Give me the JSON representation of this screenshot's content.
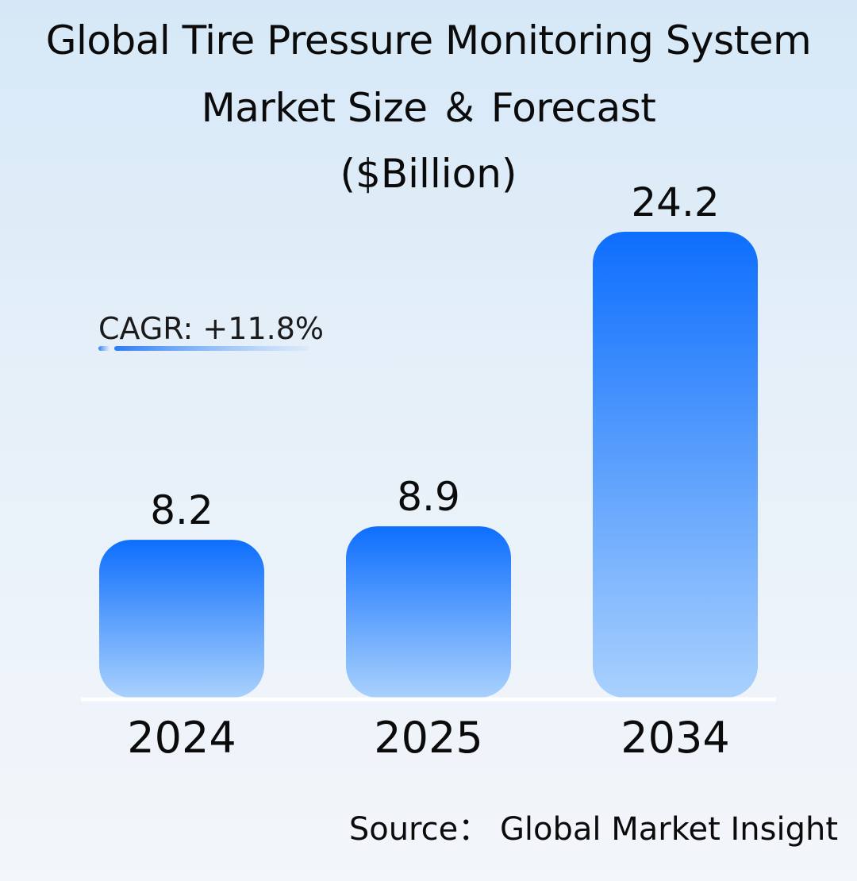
{
  "chart_data": {
    "type": "bar",
    "title_lines": [
      "Global Tire Pressure Monitoring System",
      "Market Size ＆ Forecast",
      "($Billion)"
    ],
    "categories": [
      "2024",
      "2025",
      "2034"
    ],
    "values": [
      8.2,
      8.9,
      24.2
    ],
    "value_labels": [
      "8.2",
      "8.9",
      "24.2"
    ],
    "annotation": "CAGR: +11.8%",
    "xlabel": "",
    "ylabel": "",
    "ylim": [
      0,
      24.2
    ],
    "grid": false,
    "legend": "none"
  },
  "source": "Source： Global Market Insight",
  "colors": {
    "bar_top": "#0d6efd",
    "bar_bottom": "#a9d1fd",
    "baseline": "#ffffff",
    "underline": "#2b7cf6"
  }
}
